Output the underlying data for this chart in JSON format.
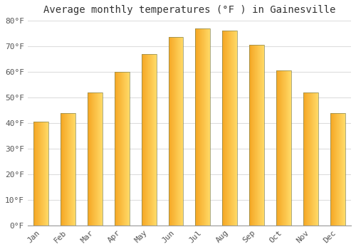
{
  "title": "Average monthly temperatures (°F ) in Gainesville",
  "months": [
    "Jan",
    "Feb",
    "Mar",
    "Apr",
    "May",
    "Jun",
    "Jul",
    "Aug",
    "Sep",
    "Oct",
    "Nov",
    "Dec"
  ],
  "values": [
    40.5,
    44.0,
    52.0,
    60.0,
    67.0,
    73.5,
    77.0,
    76.0,
    70.5,
    60.5,
    52.0,
    44.0
  ],
  "bar_color_left": "#F5A623",
  "bar_color_right": "#FFD966",
  "bar_edge_color": "#888855",
  "bar_edge_width": 0.5,
  "ylim": [
    0,
    80
  ],
  "yticks": [
    0,
    10,
    20,
    30,
    40,
    50,
    60,
    70,
    80
  ],
  "ytick_labels": [
    "0°F",
    "10°F",
    "20°F",
    "30°F",
    "40°F",
    "50°F",
    "60°F",
    "70°F",
    "80°F"
  ],
  "background_color": "#ffffff",
  "plot_bg_color": "#ffffff",
  "grid_color": "#dddddd",
  "title_fontsize": 10,
  "tick_fontsize": 8,
  "tick_color": "#555555",
  "title_color": "#333333",
  "bar_width": 0.55,
  "left_spine_color": "#999999"
}
